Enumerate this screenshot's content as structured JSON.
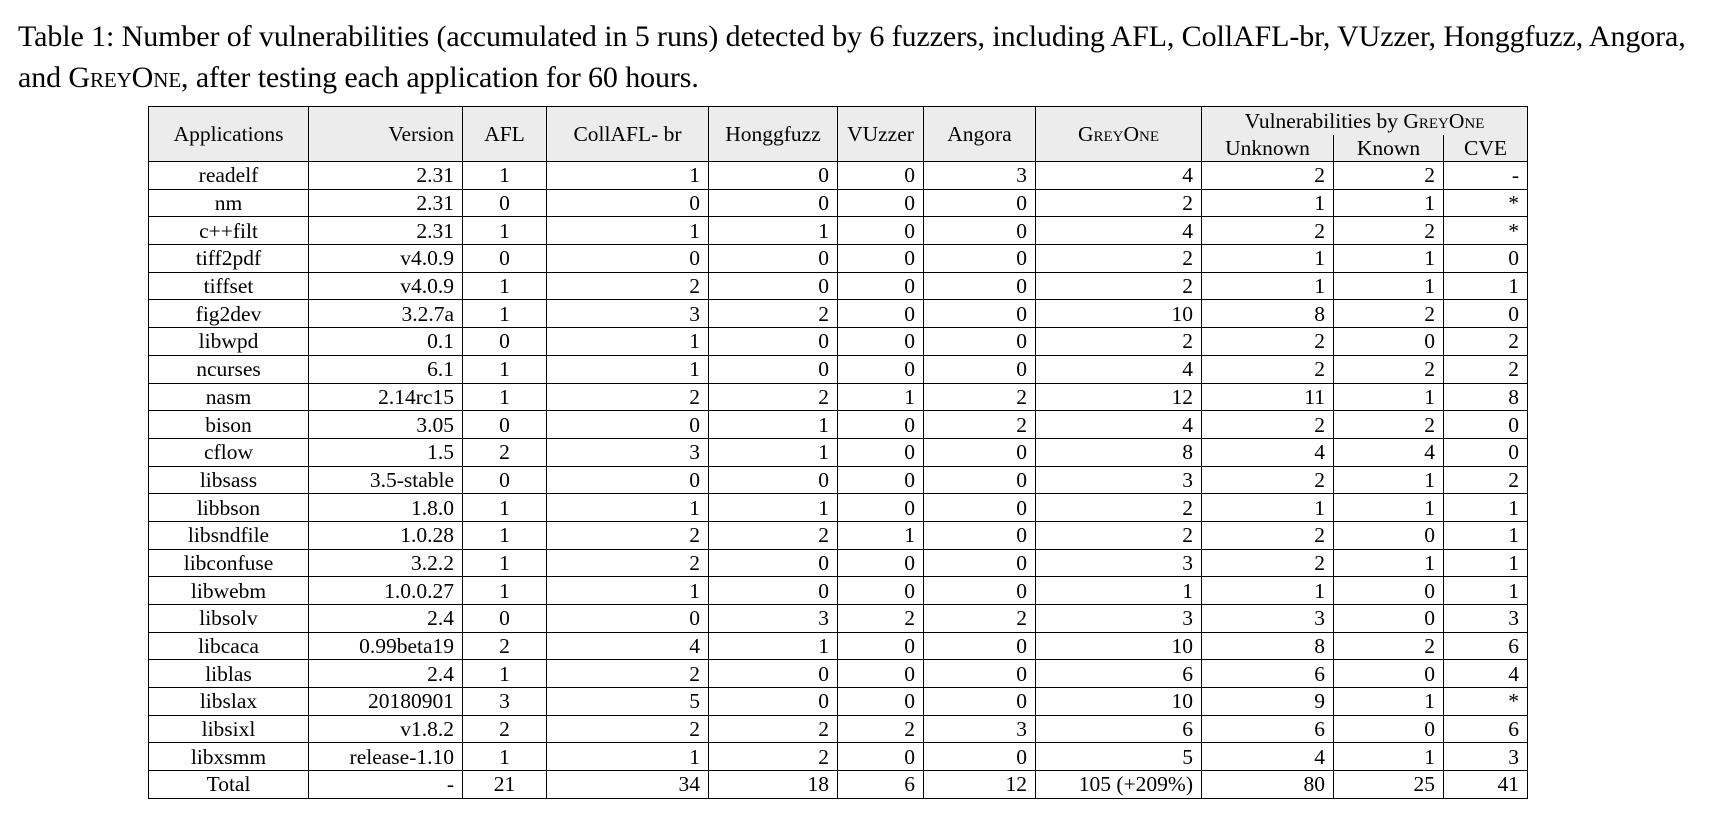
{
  "caption": {
    "pre": "Table 1: Number of vulnerabilities (accumulated in 5 runs) detected by 6 fuzzers, including AFL, CollAFL-br, VUzzer, Honggfuzz, Angora, and ",
    "sc": "GreyOne",
    "post": ", after testing each application for 60 hours."
  },
  "table": {
    "headers": {
      "applications": "Applications",
      "version": "Version",
      "afl": "AFL",
      "collafl": "CollAFL- br",
      "honggfuzz": "Honggfuzz",
      "vuzzer": "VUzzer",
      "angora": "Angora",
      "greyone": "GreyOne",
      "group_pre": "Vulnerabilities by ",
      "group_sc": "GreyOne",
      "unknown": "Unknown",
      "known": "Known",
      "cve": "CVE"
    },
    "rows": [
      [
        "readelf",
        "2.31",
        "1",
        "1",
        "0",
        "0",
        "3",
        "4",
        "2",
        "2",
        "-"
      ],
      [
        "nm",
        "2.31",
        "0",
        "0",
        "0",
        "0",
        "0",
        "2",
        "1",
        "1",
        "*"
      ],
      [
        "c++filt",
        "2.31",
        "1",
        "1",
        "1",
        "0",
        "0",
        "4",
        "2",
        "2",
        "*"
      ],
      [
        "tiff2pdf",
        "v4.0.9",
        "0",
        "0",
        "0",
        "0",
        "0",
        "2",
        "1",
        "1",
        "0"
      ],
      [
        "tiffset",
        "v4.0.9",
        "1",
        "2",
        "0",
        "0",
        "0",
        "2",
        "1",
        "1",
        "1"
      ],
      [
        "fig2dev",
        "3.2.7a",
        "1",
        "3",
        "2",
        "0",
        "0",
        "10",
        "8",
        "2",
        "0"
      ],
      [
        "libwpd",
        "0.1",
        "0",
        "1",
        "0",
        "0",
        "0",
        "2",
        "2",
        "0",
        "2"
      ],
      [
        "ncurses",
        "6.1",
        "1",
        "1",
        "0",
        "0",
        "0",
        "4",
        "2",
        "2",
        "2"
      ],
      [
        "nasm",
        "2.14rc15",
        "1",
        "2",
        "2",
        "1",
        "2",
        "12",
        "11",
        "1",
        "8"
      ],
      [
        "bison",
        "3.05",
        "0",
        "0",
        "1",
        "0",
        "2",
        "4",
        "2",
        "2",
        "0"
      ],
      [
        "cflow",
        "1.5",
        "2",
        "3",
        "1",
        "0",
        "0",
        "8",
        "4",
        "4",
        "0"
      ],
      [
        "libsass",
        "3.5-stable",
        "0",
        "0",
        "0",
        "0",
        "0",
        "3",
        "2",
        "1",
        "2"
      ],
      [
        "libbson",
        "1.8.0",
        "1",
        "1",
        "1",
        "0",
        "0",
        "2",
        "1",
        "1",
        "1"
      ],
      [
        "libsndfile",
        "1.0.28",
        "1",
        "2",
        "2",
        "1",
        "0",
        "2",
        "2",
        "0",
        "1"
      ],
      [
        "libconfuse",
        "3.2.2",
        "1",
        "2",
        "0",
        "0",
        "0",
        "3",
        "2",
        "1",
        "1"
      ],
      [
        "libwebm",
        "1.0.0.27",
        "1",
        "1",
        "0",
        "0",
        "0",
        "1",
        "1",
        "0",
        "1"
      ],
      [
        "libsolv",
        "2.4",
        "0",
        "0",
        "3",
        "2",
        "2",
        "3",
        "3",
        "0",
        "3"
      ],
      [
        "libcaca",
        "0.99beta19",
        "2",
        "4",
        "1",
        "0",
        "0",
        "10",
        "8",
        "2",
        "6"
      ],
      [
        "liblas",
        "2.4",
        "1",
        "2",
        "0",
        "0",
        "0",
        "6",
        "6",
        "0",
        "4"
      ],
      [
        "libslax",
        "20180901",
        "3",
        "5",
        "0",
        "0",
        "0",
        "10",
        "9",
        "1",
        "*"
      ],
      [
        "libsixl",
        "v1.8.2",
        "2",
        "2",
        "2",
        "2",
        "3",
        "6",
        "6",
        "0",
        "6"
      ],
      [
        "libxsmm",
        "release-1.10",
        "1",
        "1",
        "2",
        "0",
        "0",
        "5",
        "4",
        "1",
        "3"
      ],
      [
        "Total",
        "-",
        "21",
        "34",
        "18",
        "6",
        "12",
        "105 (+209%)",
        "80",
        "25",
        "41"
      ]
    ]
  }
}
